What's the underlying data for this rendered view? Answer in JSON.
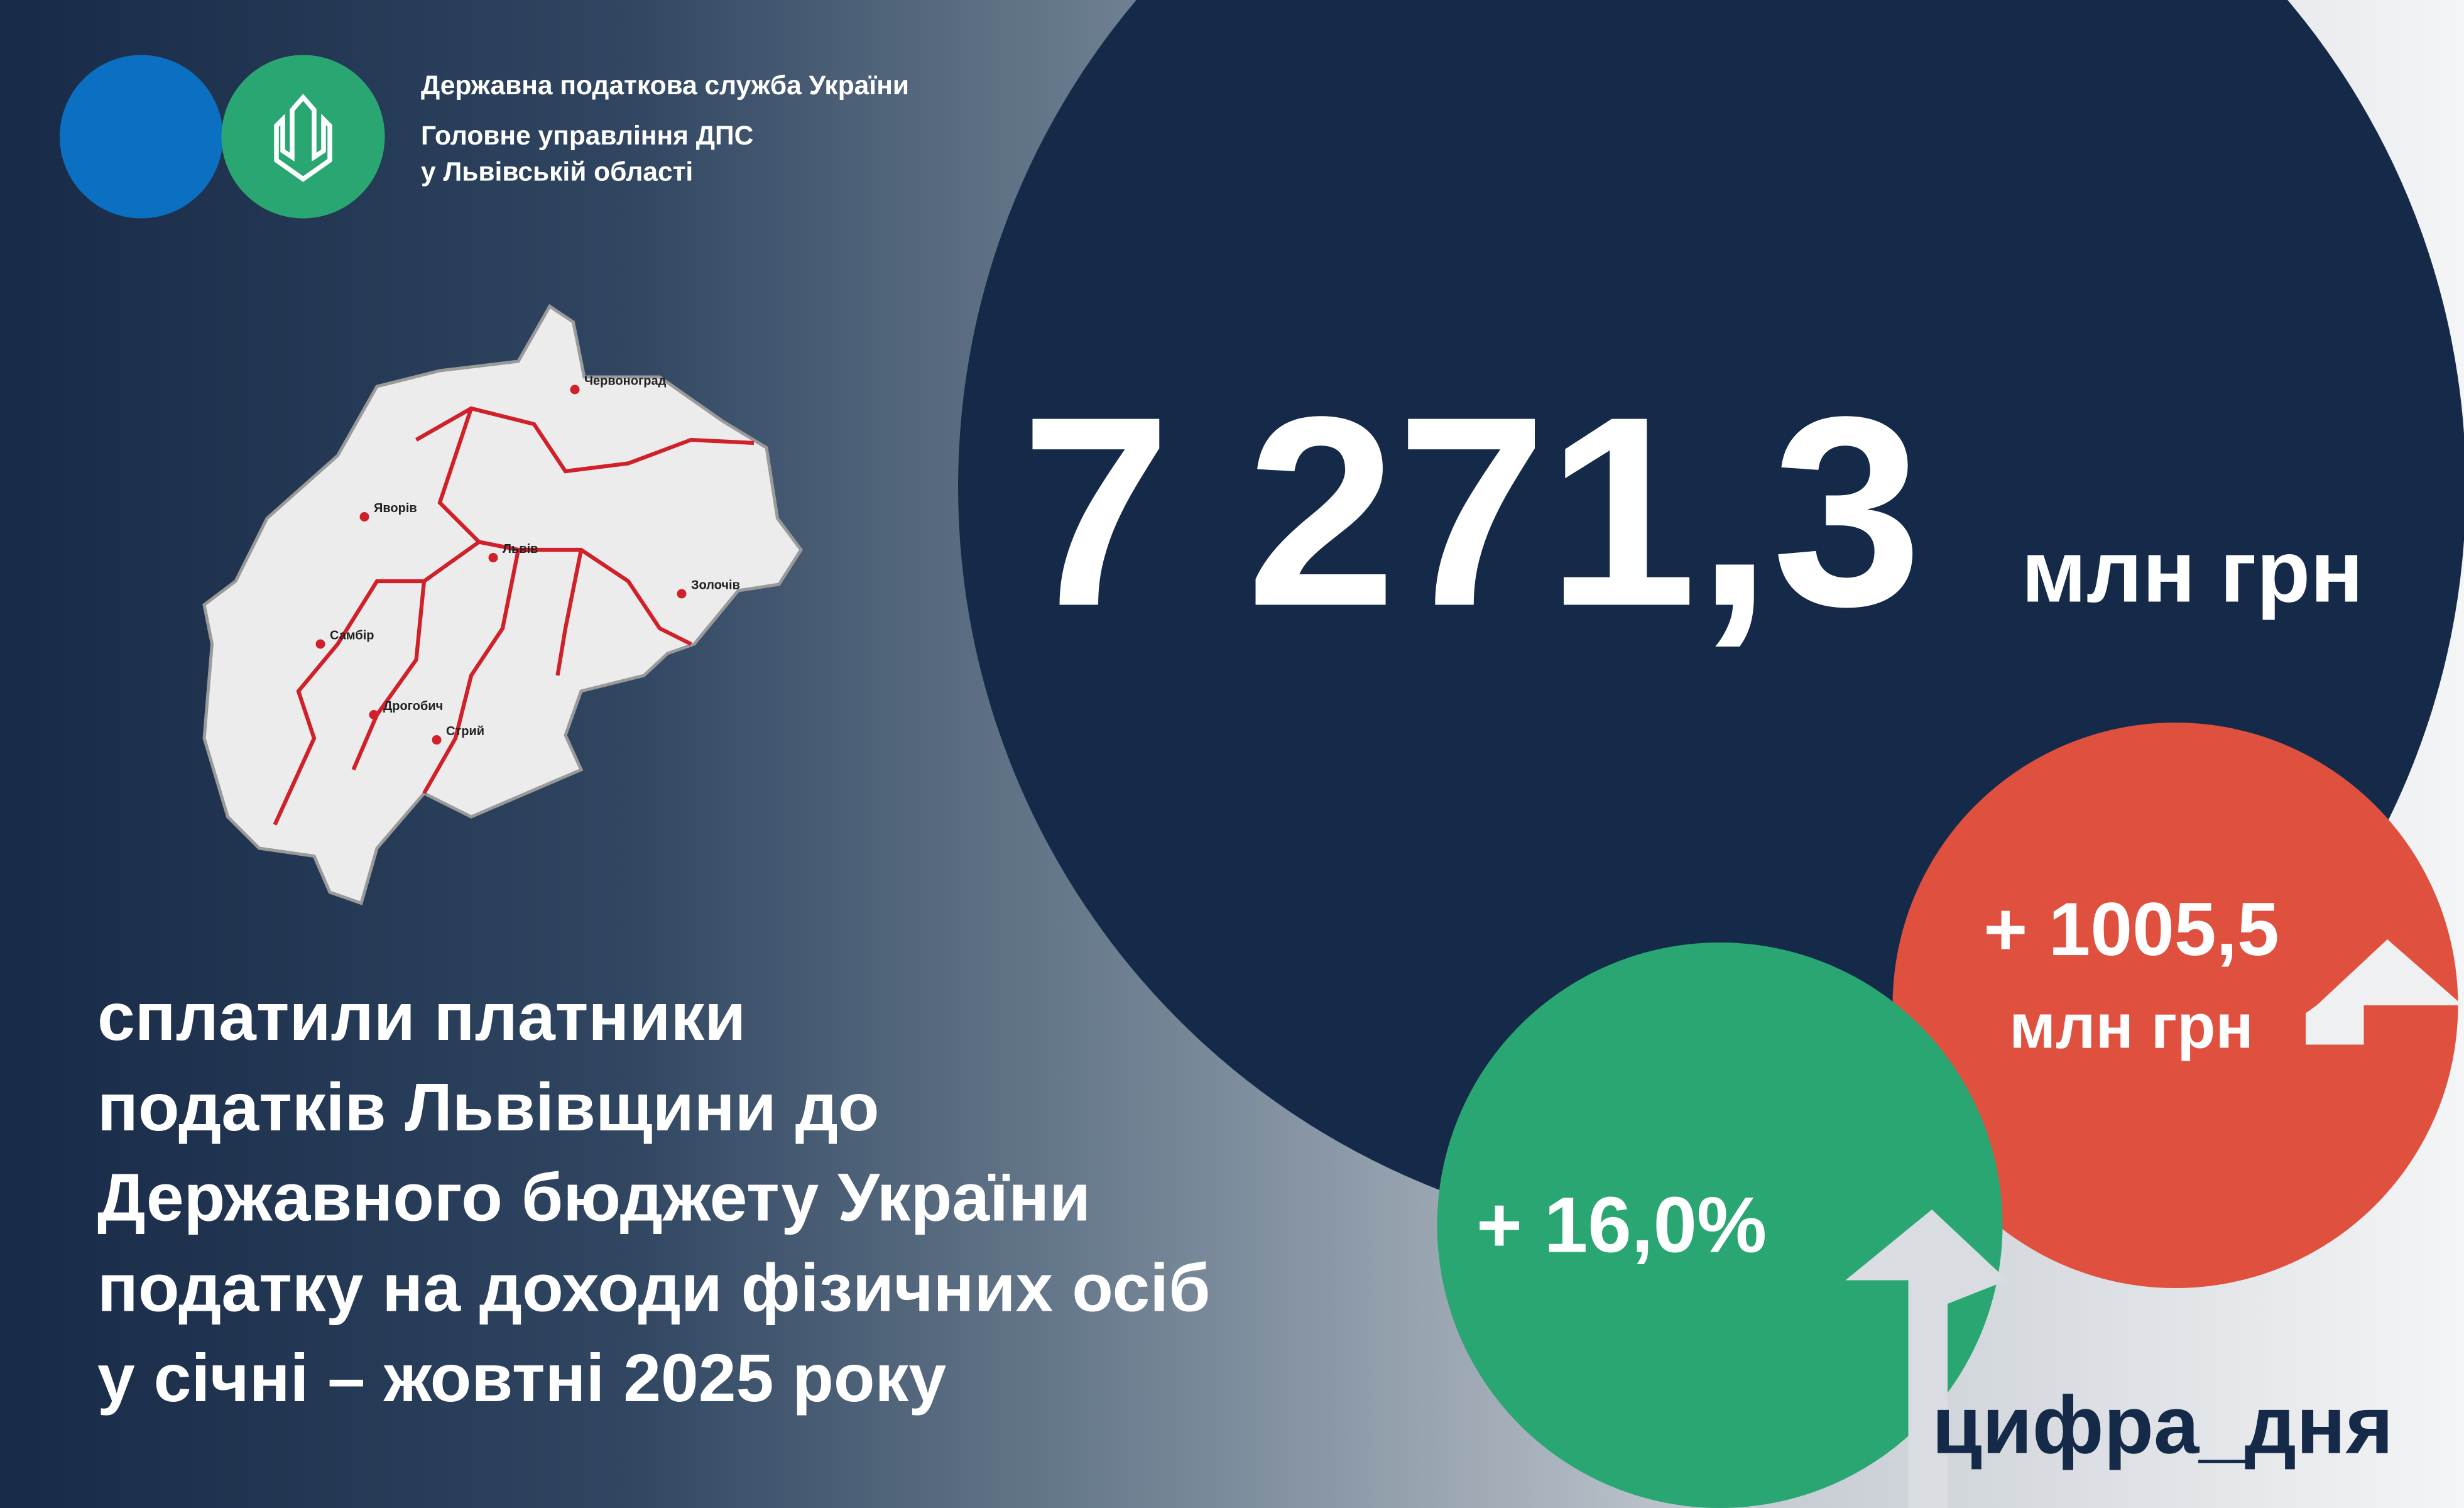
{
  "header": {
    "org": "Державна податкова служба України",
    "dept_line1": "Головне управління ДПС",
    "dept_line2": "у Львівській області"
  },
  "map": {
    "cities": [
      "Червоноград",
      "Яворів",
      "Львів",
      "Золочів",
      "Самбір",
      "Дрогобич",
      "Стрий"
    ]
  },
  "main": {
    "value": "7 271,3",
    "unit": "млн грн"
  },
  "growth_abs": {
    "value": "+ 1005,5",
    "unit": "млн грн"
  },
  "growth_pct": {
    "value": "+ 16,0%"
  },
  "description": [
    "сплатили платники",
    "податків Львівщини до",
    "Державного бюджету України",
    "податку на доходи фізичних осіб",
    "у січні – жовтні 2025 року"
  ],
  "hashtag": "цифра_дня"
}
